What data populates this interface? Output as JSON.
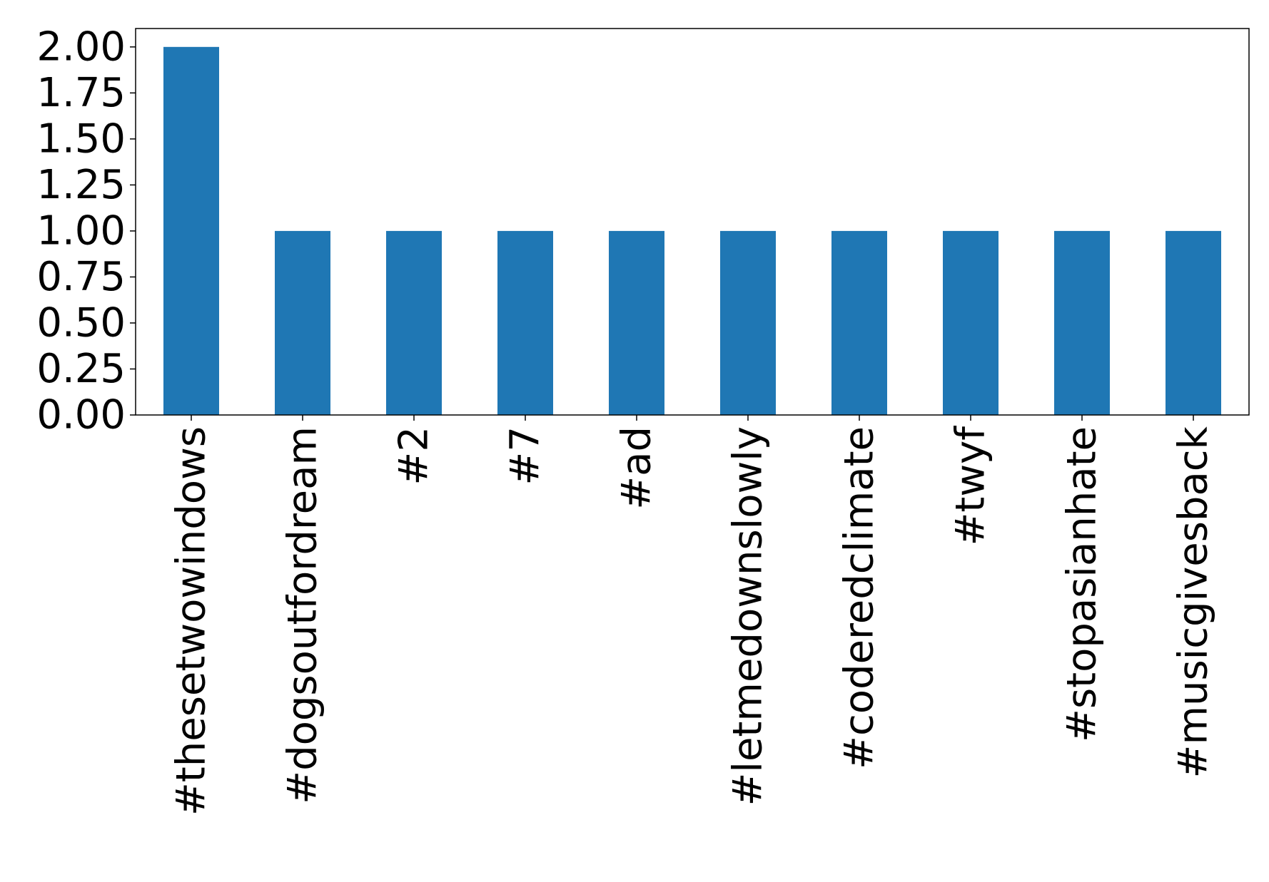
{
  "chart_data": {
    "type": "bar",
    "title": "",
    "xlabel": "",
    "ylabel": "",
    "categories": [
      "#thesetwowindows",
      "#dogsoutfordream",
      "#2",
      "#7",
      "#ad",
      "#letmedownslowly",
      "#coderedclimate",
      "#twyf",
      "#stopasianhate",
      "#musicgivesback"
    ],
    "values": [
      2,
      1,
      1,
      1,
      1,
      1,
      1,
      1,
      1,
      1
    ],
    "ylim": [
      0,
      2.1
    ],
    "yticks": [
      "0.00",
      "0.25",
      "0.50",
      "0.75",
      "1.00",
      "1.25",
      "1.50",
      "1.75",
      "2.00"
    ],
    "bar_color": "#1f77b4",
    "grid": false,
    "legend": "none"
  }
}
